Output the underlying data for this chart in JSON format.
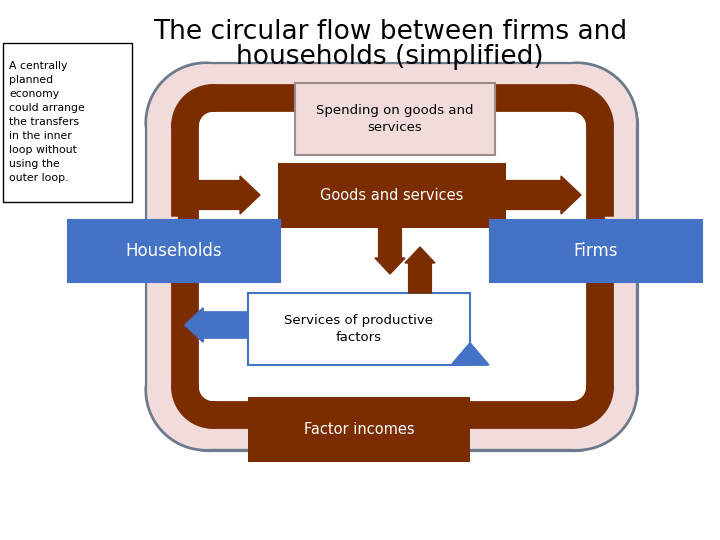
{
  "title_line1": "The circular flow between firms and",
  "title_line2": "households (simplified)",
  "sidebar_text": "A centrally\nplanned\neconomy\ncould arrange\nthe transfers\nin the inner\nloop without\nusing the\nouter loop.",
  "box_spending": "Spending on goods and\nservices",
  "box_goods": "Goods and services",
  "box_households": "Households",
  "box_firms": "Firms",
  "box_services": "Services of productive\nfactors",
  "box_factor": "Factor incomes",
  "color_blue": "#4472C4",
  "color_brown": "#7B2D00",
  "color_pink": "#F2DCDB",
  "color_pink_border": "#8B7B7B",
  "color_blue_border": "#4472C4",
  "color_white": "#FFFFFF",
  "color_text_light": "#FFFFFF",
  "color_text_dark": "#000000",
  "bg_color": "#FFFFFF"
}
